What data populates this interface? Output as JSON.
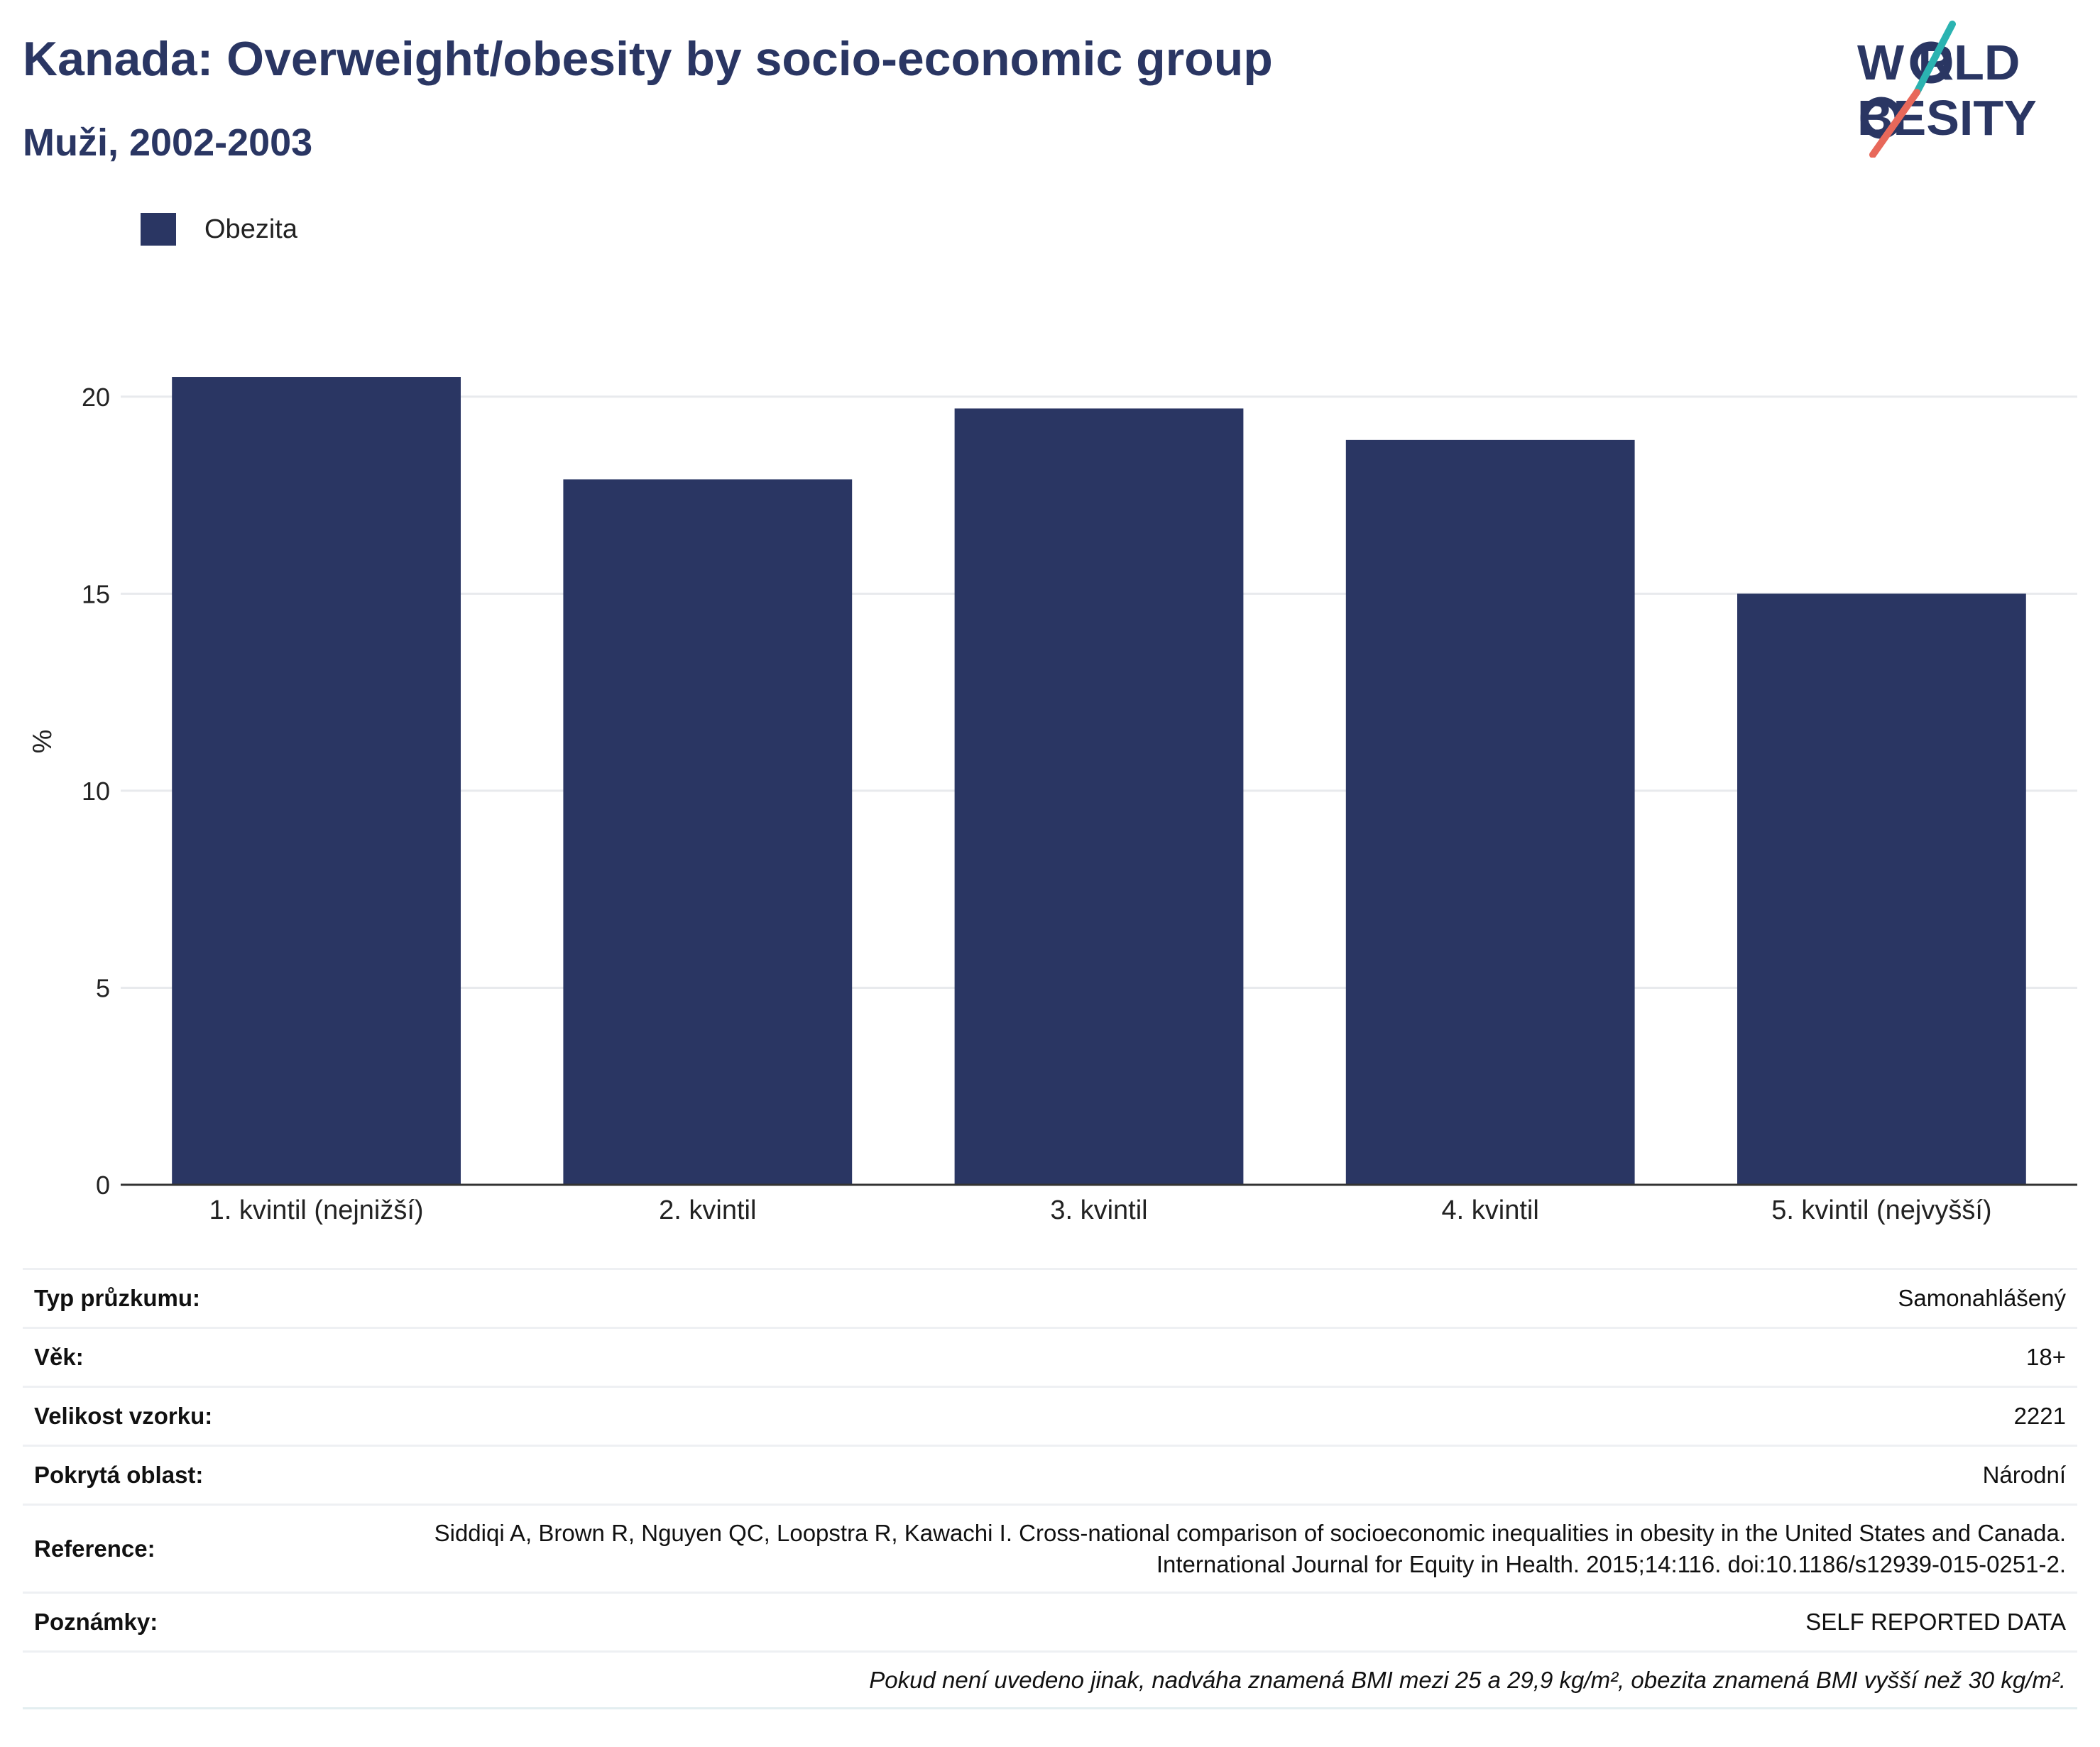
{
  "header": {
    "title": "Kanada: Overweight/obesity by socio-economic group",
    "subtitle": "Muži, 2002-2003"
  },
  "logo": {
    "line1": "W RLD",
    "line2": "BESITY",
    "text": "WORLD OBESITY",
    "colors": {
      "text": "#2a3663",
      "slash_top": "#2bb3b1",
      "slash_bottom": "#e8685a"
    }
  },
  "legend": {
    "items": [
      {
        "label": "Obezita",
        "color": "#2a3663"
      }
    ]
  },
  "chart_data": {
    "type": "bar",
    "categories": [
      "1. kvintil (nejnižší)",
      "2. kvintil",
      "3. kvintil",
      "4. kvintil",
      "5. kvintil (nejvyšší)"
    ],
    "series": [
      {
        "name": "Obezita",
        "values": [
          20.5,
          17.9,
          19.7,
          18.9,
          15.0
        ],
        "color": "#2a3663"
      }
    ],
    "ylabel": "%",
    "xlabel": "",
    "ylim": [
      0,
      22.5
    ],
    "yticks": [
      0,
      5,
      10,
      15,
      20
    ],
    "grid": true,
    "legend_position": "top-left"
  },
  "info": {
    "rows": [
      {
        "key": "Typ průzkumu:",
        "value": "Samonahlášený"
      },
      {
        "key": "Věk:",
        "value": "18+"
      },
      {
        "key": "Velikost vzorku:",
        "value": "2221"
      },
      {
        "key": "Pokrytá oblast:",
        "value": "Národní"
      },
      {
        "key": "Reference:",
        "value": "Siddiqi A, Brown R, Nguyen QC, Loopstra R, Kawachi I. Cross-national comparison of socioeconomic inequalities in obesity in the United States and Canada. International Journal for Equity in Health. 2015;14:116. doi:10.1186/s12939-015-0251-2."
      },
      {
        "key": "Poznámky:",
        "value": "SELF REPORTED DATA"
      }
    ],
    "footnote": "Pokud není uvedeno jinak, nadváha znamená BMI mezi 25 a 29,9 kg/m², obezita znamená BMI vyšší než 30 kg/m²."
  }
}
